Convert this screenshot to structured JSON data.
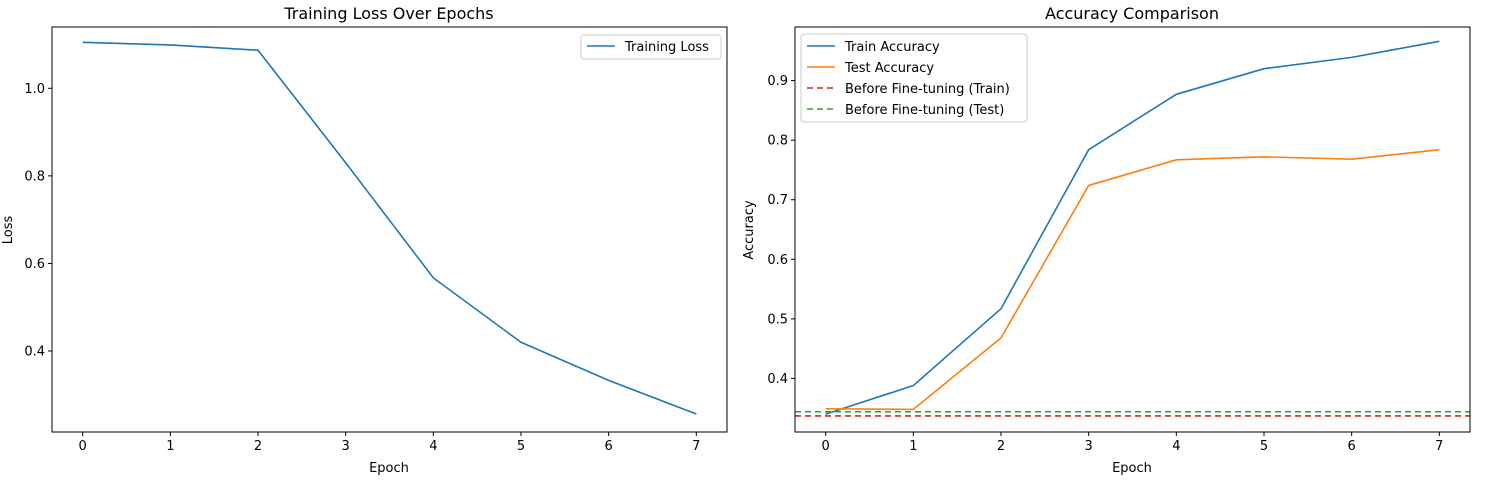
{
  "chart_data": [
    {
      "type": "line",
      "title": "Training Loss Over Epochs",
      "xlabel": "Epoch",
      "ylabel": "Loss",
      "xlim": [
        -0.35,
        7.35
      ],
      "ylim": [
        0.215,
        1.14
      ],
      "xticks": [
        0,
        1,
        2,
        3,
        4,
        5,
        6,
        7
      ],
      "yticks": [
        0.4,
        0.6,
        0.8,
        1.0
      ],
      "ytick_labels": [
        "0.4",
        "0.6",
        "0.8",
        "1.0"
      ],
      "legend_position": "upper right",
      "series": [
        {
          "name": "Training Loss",
          "color": "#1f77b4",
          "style": "solid",
          "x": [
            0,
            1,
            2,
            3,
            4,
            5,
            6,
            7
          ],
          "values": [
            1.105,
            1.099,
            1.087,
            0.83,
            0.567,
            0.42,
            0.333,
            0.256
          ]
        }
      ]
    },
    {
      "type": "line",
      "title": "Accuracy Comparison",
      "xlabel": "Epoch",
      "ylabel": "Accuracy",
      "xlim": [
        -0.35,
        7.35
      ],
      "ylim": [
        0.31,
        0.99
      ],
      "xticks": [
        0,
        1,
        2,
        3,
        4,
        5,
        6,
        7
      ],
      "yticks": [
        0.4,
        0.5,
        0.6,
        0.7,
        0.8,
        0.9
      ],
      "ytick_labels": [
        "0.4",
        "0.5",
        "0.6",
        "0.7",
        "0.8",
        "0.9"
      ],
      "legend_position": "upper left",
      "series": [
        {
          "name": "Train Accuracy",
          "color": "#1f77b4",
          "style": "solid",
          "x": [
            0,
            1,
            2,
            3,
            4,
            5,
            6,
            7
          ],
          "values": [
            0.34,
            0.388,
            0.517,
            0.784,
            0.877,
            0.92,
            0.939,
            0.966
          ]
        },
        {
          "name": "Test Accuracy",
          "color": "#ff7f0e",
          "style": "solid",
          "x": [
            0,
            1,
            2,
            3,
            4,
            5,
            6,
            7
          ],
          "values": [
            0.349,
            0.348,
            0.468,
            0.724,
            0.767,
            0.772,
            0.768,
            0.784
          ]
        },
        {
          "name": "Before Fine-tuning (Train)",
          "color": "#d62728",
          "style": "dashed",
          "hline": 0.337
        },
        {
          "name": "Before Fine-tuning (Test)",
          "color": "#2ca02c",
          "style": "dashed",
          "hline": 0.344
        }
      ]
    }
  ]
}
